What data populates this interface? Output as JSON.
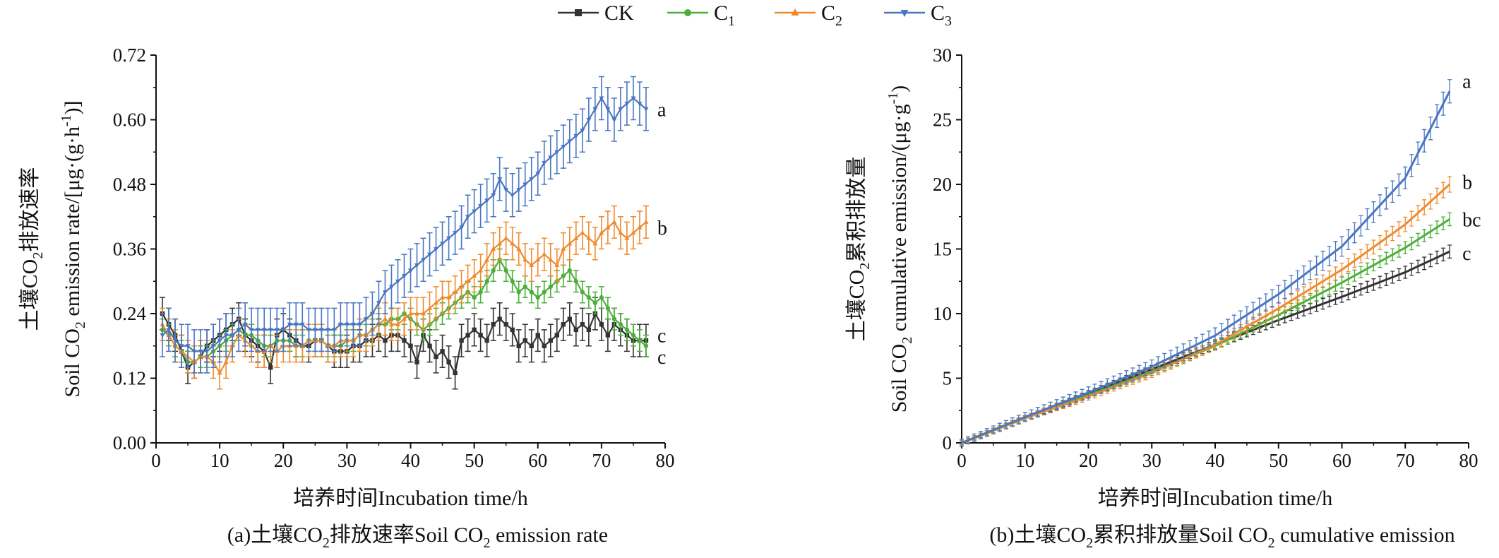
{
  "legend": {
    "entries": [
      {
        "label": "CK",
        "sub": "",
        "color": "#333333",
        "marker": "square"
      },
      {
        "label": "C",
        "sub": "1",
        "color": "#4caf3a",
        "marker": "circle"
      },
      {
        "label": "C",
        "sub": "2",
        "color": "#f08a2e",
        "marker": "triangle-up"
      },
      {
        "label": "C",
        "sub": "3",
        "color": "#4a76c1",
        "marker": "triangle-down"
      }
    ]
  },
  "chart_data": [
    {
      "type": "line",
      "caption": {
        "pre": "(a)土壤CO",
        "sub": "2",
        "post": "排放速率Soil  CO",
        "sub2": "2",
        "end": " emission rate"
      },
      "xlabel": "培养时间Incubation time/h",
      "ylabel_line1": {
        "pre": "土壤CO",
        "sub": "2",
        "post": "排放速率"
      },
      "ylabel_line2": {
        "pre": "Soil CO",
        "sub": "2",
        "mid": " emission rate/[μg·(g·h",
        "sup": "-1",
        "post": ")]"
      },
      "xlim": [
        0,
        80
      ],
      "ylim": [
        0,
        0.72
      ],
      "xticks": [
        "0",
        "10",
        "20",
        "30",
        "40",
        "50",
        "60",
        "70",
        "80"
      ],
      "yticks": [
        "0.00",
        "0.12",
        "0.24",
        "0.36",
        "0.48",
        "0.60",
        "0.72"
      ],
      "xstep": 10,
      "ystep": 0.12,
      "x_start": 1,
      "x_interval": 1,
      "series": [
        {
          "name": "CK",
          "color": "#333333",
          "values": [
            0.24,
            0.22,
            0.2,
            0.17,
            0.14,
            0.15,
            0.16,
            0.18,
            0.19,
            0.2,
            0.21,
            0.22,
            0.23,
            0.2,
            0.19,
            0.18,
            0.17,
            0.14,
            0.2,
            0.21,
            0.2,
            0.19,
            0.18,
            0.18,
            0.19,
            0.19,
            0.18,
            0.17,
            0.17,
            0.17,
            0.18,
            0.18,
            0.19,
            0.19,
            0.2,
            0.19,
            0.2,
            0.2,
            0.19,
            0.18,
            0.15,
            0.2,
            0.18,
            0.16,
            0.17,
            0.15,
            0.13,
            0.19,
            0.2,
            0.21,
            0.2,
            0.19,
            0.22,
            0.23,
            0.22,
            0.21,
            0.18,
            0.19,
            0.18,
            0.2,
            0.18,
            0.19,
            0.2,
            0.22,
            0.23,
            0.21,
            0.22,
            0.21,
            0.24,
            0.22,
            0.2,
            0.22,
            0.21,
            0.2,
            0.19,
            0.19,
            0.19
          ],
          "err": 0.03
        },
        {
          "name": "C1",
          "color": "#4caf3a",
          "values": [
            0.21,
            0.2,
            0.18,
            0.17,
            0.15,
            0.15,
            0.16,
            0.16,
            0.17,
            0.18,
            0.19,
            0.2,
            0.21,
            0.2,
            0.2,
            0.19,
            0.18,
            0.18,
            0.19,
            0.19,
            0.19,
            0.18,
            0.18,
            0.19,
            0.19,
            0.19,
            0.18,
            0.18,
            0.18,
            0.19,
            0.19,
            0.2,
            0.2,
            0.21,
            0.22,
            0.22,
            0.23,
            0.23,
            0.24,
            0.23,
            0.22,
            0.21,
            0.22,
            0.23,
            0.24,
            0.25,
            0.26,
            0.27,
            0.28,
            0.27,
            0.28,
            0.3,
            0.32,
            0.34,
            0.32,
            0.3,
            0.28,
            0.29,
            0.28,
            0.27,
            0.28,
            0.29,
            0.3,
            0.31,
            0.32,
            0.3,
            0.28,
            0.27,
            0.26,
            0.27,
            0.25,
            0.23,
            0.22,
            0.21,
            0.2,
            0.19,
            0.18
          ],
          "err": 0.02
        },
        {
          "name": "C2",
          "color": "#f08a2e",
          "values": [
            0.22,
            0.2,
            0.18,
            0.17,
            0.16,
            0.15,
            0.16,
            0.16,
            0.15,
            0.13,
            0.15,
            0.18,
            0.2,
            0.19,
            0.18,
            0.17,
            0.17,
            0.18,
            0.17,
            0.18,
            0.18,
            0.18,
            0.18,
            0.19,
            0.19,
            0.19,
            0.18,
            0.18,
            0.19,
            0.19,
            0.19,
            0.2,
            0.2,
            0.21,
            0.22,
            0.23,
            0.22,
            0.22,
            0.23,
            0.24,
            0.24,
            0.24,
            0.25,
            0.26,
            0.27,
            0.27,
            0.28,
            0.29,
            0.3,
            0.31,
            0.32,
            0.34,
            0.36,
            0.37,
            0.38,
            0.37,
            0.36,
            0.34,
            0.33,
            0.34,
            0.35,
            0.34,
            0.33,
            0.36,
            0.37,
            0.38,
            0.39,
            0.38,
            0.37,
            0.39,
            0.4,
            0.41,
            0.39,
            0.38,
            0.39,
            0.4,
            0.41
          ],
          "err": 0.03
        },
        {
          "name": "C3",
          "color": "#4a76c1",
          "values": [
            0.2,
            0.21,
            0.19,
            0.18,
            0.18,
            0.17,
            0.17,
            0.17,
            0.18,
            0.19,
            0.2,
            0.2,
            0.21,
            0.22,
            0.21,
            0.21,
            0.21,
            0.21,
            0.21,
            0.21,
            0.22,
            0.22,
            0.22,
            0.21,
            0.21,
            0.21,
            0.21,
            0.21,
            0.22,
            0.22,
            0.22,
            0.22,
            0.23,
            0.24,
            0.26,
            0.28,
            0.29,
            0.3,
            0.31,
            0.32,
            0.33,
            0.34,
            0.35,
            0.36,
            0.37,
            0.38,
            0.39,
            0.4,
            0.42,
            0.43,
            0.44,
            0.45,
            0.46,
            0.49,
            0.47,
            0.46,
            0.47,
            0.48,
            0.49,
            0.5,
            0.52,
            0.53,
            0.54,
            0.55,
            0.56,
            0.57,
            0.58,
            0.6,
            0.62,
            0.64,
            0.62,
            0.6,
            0.62,
            0.63,
            0.64,
            0.63,
            0.62
          ],
          "err": 0.04
        }
      ],
      "annotations": [
        {
          "text": "a",
          "x": 77,
          "y": 0.62
        },
        {
          "text": "b",
          "x": 77,
          "y": 0.4
        },
        {
          "text": "c",
          "x": 77,
          "y": 0.2
        },
        {
          "text": "c",
          "x": 77,
          "y": 0.16
        }
      ]
    },
    {
      "type": "line",
      "caption": {
        "pre": "(b)土壤CO",
        "sub": "2",
        "post": "累积排放量Soil  CO",
        "sub2": "2",
        "end": " cumulative emission"
      },
      "xlabel": "培养时间Incubation time/h",
      "ylabel_line1": {
        "pre": "土壤CO",
        "sub": "2",
        "post": "累积排放量"
      },
      "ylabel_line2": {
        "pre": "Soil CO",
        "sub": "2",
        "mid": " cumulative emission/(μg·g",
        "sup": "-1",
        "post": ")"
      },
      "xlim": [
        0,
        80
      ],
      "ylim": [
        0,
        30
      ],
      "xticks": [
        "0",
        "10",
        "20",
        "30",
        "40",
        "50",
        "60",
        "70",
        "80"
      ],
      "yticks": [
        "0",
        "5",
        "10",
        "15",
        "20",
        "25",
        "30"
      ],
      "xstep": 10,
      "ystep": 5,
      "curves": [
        {
          "name": "CK",
          "color": "#333333",
          "x": [
            0,
            10,
            20,
            30,
            40,
            50,
            60,
            70,
            77
          ],
          "y": [
            0,
            1.9,
            3.8,
            5.7,
            7.6,
            9.5,
            11.3,
            13.2,
            14.8
          ],
          "err": 0.5
        },
        {
          "name": "C1",
          "color": "#4caf3a",
          "x": [
            0,
            10,
            20,
            30,
            40,
            50,
            60,
            70,
            77
          ],
          "y": [
            0,
            1.9,
            3.7,
            5.5,
            7.5,
            9.9,
            12.4,
            15.1,
            17.3
          ],
          "err": 0.5
        },
        {
          "name": "C2",
          "color": "#f08a2e",
          "x": [
            0,
            10,
            20,
            30,
            40,
            50,
            60,
            70,
            77
          ],
          "y": [
            0,
            1.9,
            3.6,
            5.4,
            7.6,
            10.4,
            13.4,
            16.9,
            20.0
          ],
          "err": 0.6
        },
        {
          "name": "C3",
          "color": "#4a76c1",
          "x": [
            0,
            10,
            20,
            30,
            40,
            50,
            60,
            70,
            77
          ],
          "y": [
            0,
            2.0,
            3.9,
            5.9,
            8.3,
            11.5,
            15.2,
            20.5,
            27.2
          ],
          "err": 0.9
        }
      ],
      "annotations": [
        {
          "text": "a",
          "x": 77,
          "y": 28.0
        },
        {
          "text": "b",
          "x": 77,
          "y": 20.2
        },
        {
          "text": "bc",
          "x": 77,
          "y": 17.3
        },
        {
          "text": "c",
          "x": 77,
          "y": 14.7
        }
      ]
    }
  ]
}
